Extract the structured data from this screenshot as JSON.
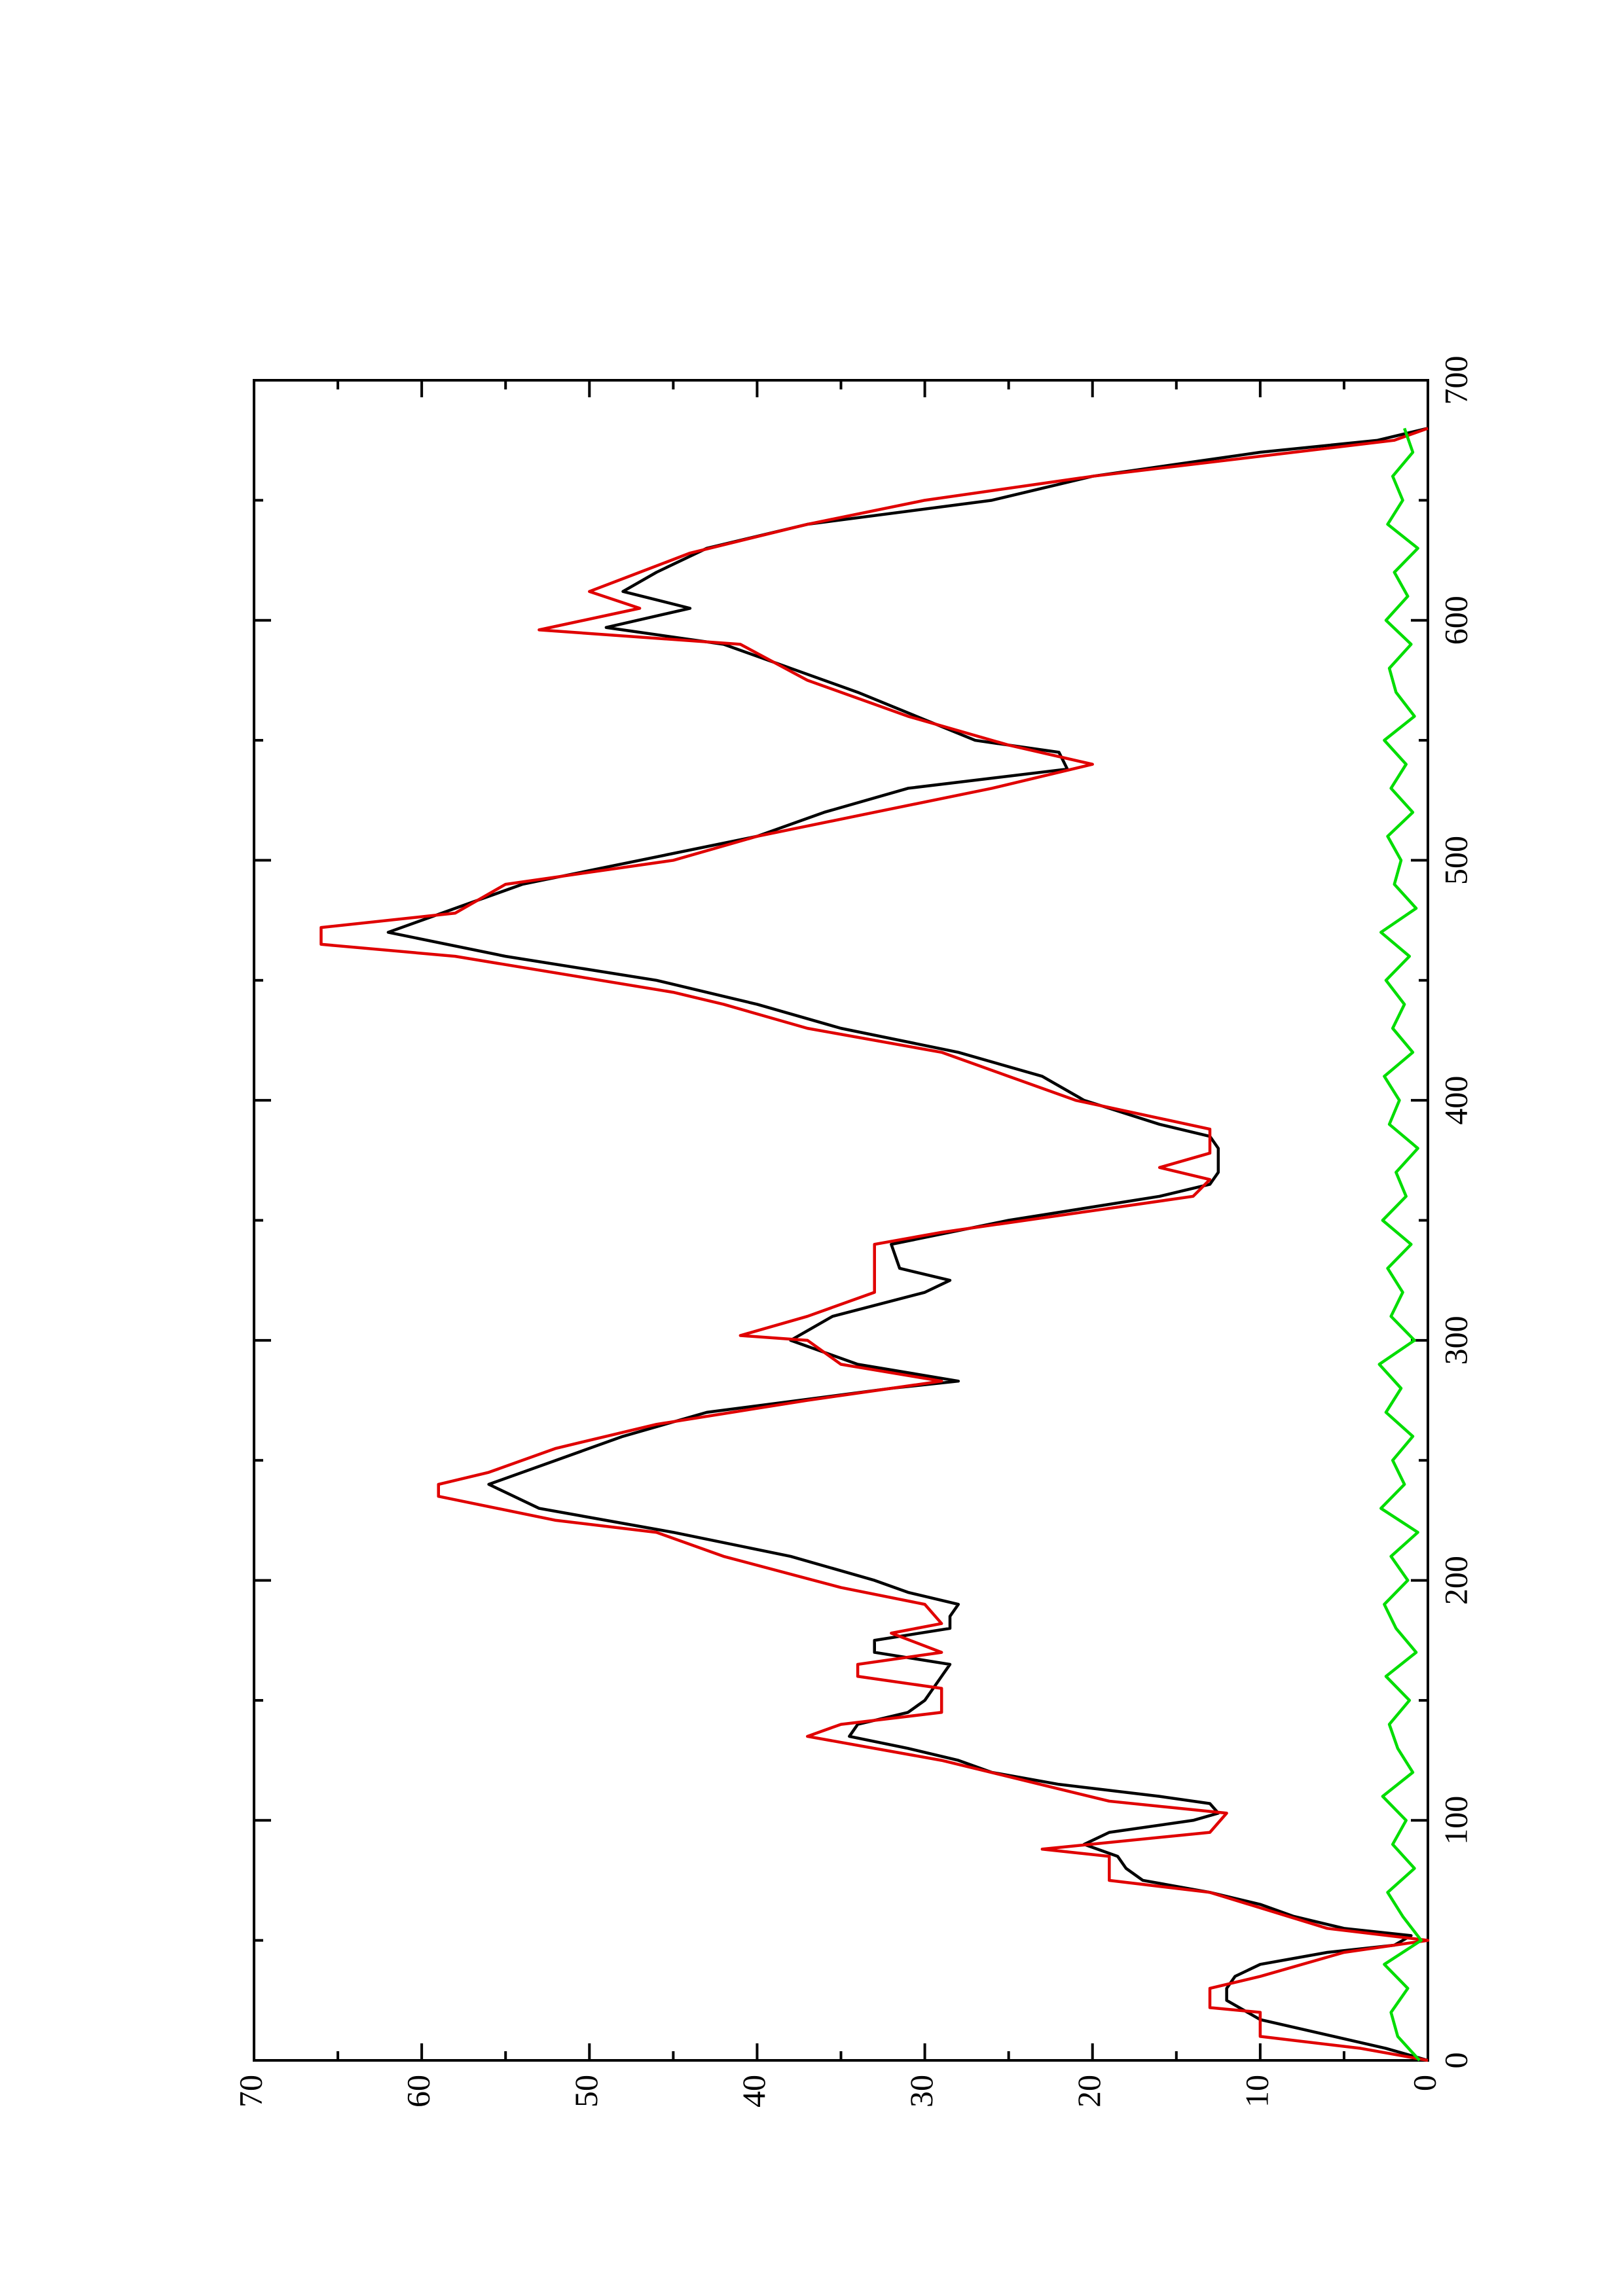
{
  "chart_data": {
    "type": "line",
    "xlim": [
      0,
      700
    ],
    "ylim": [
      0,
      70
    ],
    "xticks": [
      0,
      100,
      200,
      300,
      400,
      500,
      600,
      700
    ],
    "yticks": [
      0,
      10,
      20,
      30,
      40,
      50,
      60,
      70
    ],
    "xminorticks": [
      50,
      150,
      250,
      350,
      450,
      550,
      650
    ],
    "yminorticks": [
      5,
      15,
      25,
      35,
      45,
      55,
      65
    ],
    "series": [
      {
        "color": "#000000",
        "x": [
          0,
          5,
          17,
          25,
          30,
          35,
          40,
          45,
          48,
          52,
          55,
          60,
          65,
          70,
          75,
          80,
          85,
          90,
          95,
          100,
          103,
          107,
          110,
          115,
          120,
          125,
          130,
          135,
          140,
          145,
          150,
          160,
          165,
          170,
          175,
          180,
          185,
          190,
          195,
          200,
          210,
          220,
          230,
          240,
          250,
          260,
          270,
          280,
          283,
          290,
          300,
          310,
          320,
          325,
          330,
          340,
          350,
          360,
          365,
          370,
          380,
          385,
          390,
          400,
          410,
          420,
          430,
          440,
          450,
          460,
          470,
          480,
          490,
          500,
          510,
          520,
          530,
          538,
          545,
          550,
          560,
          570,
          580,
          590,
          597,
          605,
          612,
          620,
          630,
          640,
          650,
          660,
          670,
          675,
          680
        ],
        "values": [
          0,
          2.5,
          10,
          12,
          12,
          11.5,
          10,
          6,
          2,
          1,
          5,
          8,
          10,
          13,
          17,
          18,
          18.5,
          20.5,
          19,
          14,
          12.5,
          13,
          16,
          22,
          26,
          28,
          31,
          34.5,
          34,
          31,
          30,
          29,
          28.5,
          33,
          33,
          28.5,
          28.5,
          28,
          31,
          33,
          38,
          45,
          53,
          56,
          52,
          48,
          43,
          32,
          28,
          34,
          38,
          35.5,
          30,
          28.5,
          31.5,
          32,
          25,
          16,
          13,
          12.5,
          12.5,
          13,
          16,
          20.5,
          23,
          28,
          35,
          40,
          46,
          55,
          62,
          58,
          54,
          47,
          40,
          36,
          31,
          21.5,
          22,
          27,
          30.5,
          34,
          38,
          42,
          49,
          44,
          48,
          46,
          43,
          37,
          26,
          20,
          10,
          3,
          0
        ]
      },
      {
        "color": "#e00000",
        "x": [
          0,
          5,
          10,
          20,
          22,
          30,
          35,
          45,
          50,
          55,
          70,
          75,
          85,
          88,
          95,
          103,
          108,
          125,
          135,
          140,
          145,
          155,
          160,
          165,
          170,
          178,
          182,
          190,
          197,
          210,
          220,
          225,
          235,
          240,
          245,
          255,
          265,
          275,
          283,
          290,
          300,
          302,
          310,
          320,
          330,
          340,
          345,
          360,
          367,
          372,
          378,
          388,
          400,
          410,
          420,
          430,
          440,
          445,
          460,
          465,
          472,
          478,
          490,
          500,
          510,
          520,
          530,
          540,
          548,
          560,
          575,
          590,
          596,
          605,
          612,
          620,
          628,
          640,
          650,
          660,
          675,
          680
        ],
        "values": [
          0,
          4,
          10,
          10,
          13,
          13,
          10,
          5,
          0,
          6,
          13,
          19,
          19,
          23,
          13,
          12,
          19,
          29,
          37,
          35,
          29,
          29,
          34,
          34,
          29,
          32,
          29,
          30,
          35,
          42,
          46,
          52,
          59,
          59,
          56,
          52,
          46,
          37,
          29,
          35,
          37,
          41,
          37,
          33,
          33,
          33,
          29,
          14,
          13,
          16,
          13,
          13,
          21,
          25,
          29,
          37,
          42,
          45,
          58,
          66,
          66,
          58,
          55,
          45,
          40,
          33,
          26,
          20,
          25,
          31,
          37,
          41,
          53,
          47,
          50,
          47,
          44,
          37,
          30,
          20,
          2,
          0
        ]
      },
      {
        "color": "#00dd00",
        "x": [
          0,
          10,
          20,
          30,
          40,
          50,
          60,
          70,
          80,
          90,
          100,
          110,
          120,
          130,
          140,
          150,
          160,
          170,
          180,
          190,
          200,
          210,
          220,
          230,
          240,
          250,
          260,
          270,
          280,
          290,
          300,
          310,
          320,
          330,
          340,
          350,
          360,
          370,
          380,
          390,
          400,
          410,
          420,
          430,
          440,
          450,
          460,
          470,
          480,
          490,
          500,
          510,
          520,
          530,
          540,
          550,
          560,
          570,
          580,
          590,
          600,
          610,
          620,
          630,
          640,
          650,
          660,
          670,
          680
        ],
        "values": [
          0.5,
          1.8,
          2.2,
          1.2,
          2.6,
          0.4,
          1.5,
          2.4,
          0.8,
          2.1,
          1.3,
          2.7,
          0.9,
          1.8,
          2.3,
          1.1,
          2.5,
          0.7,
          1.9,
          2.6,
          1.2,
          2.2,
          0.6,
          2.8,
          1.4,
          2.1,
          0.9,
          2.5,
          1.6,
          2.9,
          0.8,
          2.2,
          1.5,
          2.4,
          1.0,
          2.7,
          1.3,
          1.9,
          0.6,
          2.3,
          1.7,
          2.6,
          0.9,
          2.1,
          1.4,
          2.5,
          1.1,
          2.8,
          0.7,
          2.0,
          1.6,
          2.4,
          0.9,
          2.2,
          1.3,
          2.6,
          0.8,
          1.9,
          2.3,
          1.0,
          2.5,
          1.2,
          2.0,
          0.6,
          2.4,
          1.5,
          2.1,
          0.9,
          1.4
        ]
      }
    ]
  }
}
